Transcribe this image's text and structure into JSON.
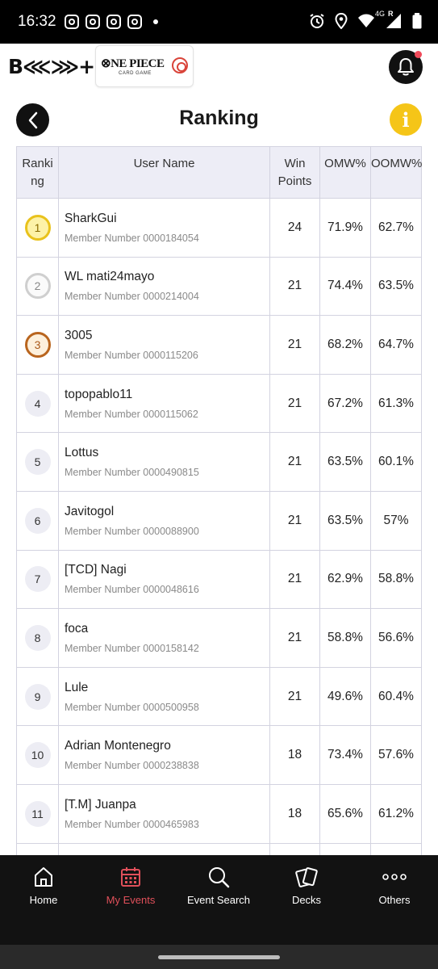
{
  "status_bar": {
    "time": "16:32",
    "network": "4G",
    "roaming": "R",
    "notification_icons": [
      "instagram-icon",
      "instagram-icon",
      "instagram-icon",
      "instagram-icon",
      "dot-icon"
    ],
    "system_icons": [
      "alarm-icon",
      "location-icon",
      "wifi-icon",
      "signal-icon",
      "battery-icon"
    ]
  },
  "header": {
    "brand_logo": "B⋘⋙+",
    "partner_logo_title": "⊗NE PIECE",
    "partner_logo_subtitle": "CARD GAME"
  },
  "page": {
    "title": "Ranking",
    "back_icon": "chevron-left-icon",
    "info_label": "i"
  },
  "table": {
    "headers": {
      "ranking": "Ranking",
      "user_name": "User Name",
      "win_points": "Win Points",
      "omw": "OMW%",
      "oomw": "OOMW%"
    },
    "rows": [
      {
        "rank": "1",
        "name": "SharkGui",
        "member": "Member Number 0000184054",
        "win_points": "24",
        "omw": "71.9%",
        "oomw": "62.7%"
      },
      {
        "rank": "2",
        "name": "WL mati24mayo",
        "member": "Member Number 0000214004",
        "win_points": "21",
        "omw": "74.4%",
        "oomw": "63.5%"
      },
      {
        "rank": "3",
        "name": "3005",
        "member": "Member Number 0000115206",
        "win_points": "21",
        "omw": "68.2%",
        "oomw": "64.7%"
      },
      {
        "rank": "4",
        "name": "topopablo11",
        "member": "Member Number 0000115062",
        "win_points": "21",
        "omw": "67.2%",
        "oomw": "61.3%"
      },
      {
        "rank": "5",
        "name": "Lottus",
        "member": "Member Number 0000490815",
        "win_points": "21",
        "omw": "63.5%",
        "oomw": "60.1%"
      },
      {
        "rank": "6",
        "name": "Javitogol",
        "member": "Member Number 0000088900",
        "win_points": "21",
        "omw": "63.5%",
        "oomw": "57%"
      },
      {
        "rank": "7",
        "name": "[TCD] Nagi",
        "member": "Member Number 0000048616",
        "win_points": "21",
        "omw": "62.9%",
        "oomw": "58.8%"
      },
      {
        "rank": "8",
        "name": "foca",
        "member": "Member Number 0000158142",
        "win_points": "21",
        "omw": "58.8%",
        "oomw": "56.6%"
      },
      {
        "rank": "9",
        "name": "Lule",
        "member": "Member Number 0000500958",
        "win_points": "21",
        "omw": "49.6%",
        "oomw": "60.4%"
      },
      {
        "rank": "10",
        "name": "Adrian Montenegro",
        "member": "Member Number 0000238838",
        "win_points": "18",
        "omw": "73.4%",
        "oomw": "57.6%"
      },
      {
        "rank": "11",
        "name": "[T.M] Juanpa",
        "member": "Member Number 0000465983",
        "win_points": "18",
        "omw": "65.6%",
        "oomw": "61.2%"
      }
    ]
  },
  "bottom_nav": {
    "items": [
      {
        "label": "Home",
        "icon": "home-icon"
      },
      {
        "label": "My Events",
        "icon": "calendar-icon",
        "active": true
      },
      {
        "label": "Event Search",
        "icon": "search-icon"
      },
      {
        "label": "Decks",
        "icon": "cards-icon"
      },
      {
        "label": "Others",
        "icon": "more-icon"
      }
    ]
  },
  "colors": {
    "accent_active": "#e0505a",
    "info_yellow": "#f5c518",
    "header_bg": "#ededf6",
    "gold": "#e9c21c",
    "silver": "#cfcfcf",
    "bronze": "#b9651e"
  }
}
